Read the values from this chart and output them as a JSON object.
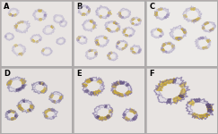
{
  "figure_width": 2.43,
  "figure_height": 1.5,
  "dpi": 100,
  "nrows": 2,
  "ncols": 3,
  "labels": [
    "A",
    "B",
    "C",
    "D",
    "E",
    "F"
  ],
  "label_fontsize": 6,
  "label_color": "black",
  "label_weight": "bold",
  "fig_bg": "#b0aaaa",
  "panel_bg": {
    "A": "#e8e4e2",
    "B": "#eae6e4",
    "C": "#eceae8",
    "D": "#e4e0de",
    "E": "#e6e2e0",
    "F": "#e8e4e2"
  },
  "border_color": "#aaaaaa",
  "hspace": 0.03,
  "wspace": 0.03
}
